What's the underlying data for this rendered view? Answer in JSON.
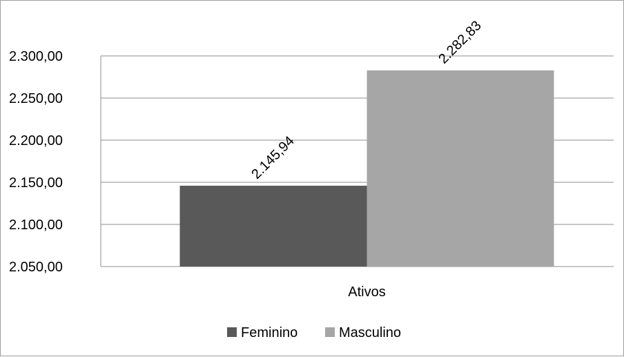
{
  "chart_data": {
    "type": "bar",
    "title": "",
    "xlabel": "",
    "ylabel": "",
    "categories": [
      "Ativos"
    ],
    "series": [
      {
        "name": "Feminino",
        "values": [
          2145.94
        ],
        "value_label": "2.145,94",
        "color": "#595959"
      },
      {
        "name": "Masculino",
        "values": [
          2282.83
        ],
        "value_label": "2.282,83",
        "color": "#a6a6a6"
      }
    ],
    "ylim": [
      2050,
      2300
    ],
    "yticks": [
      2050,
      2100,
      2150,
      2200,
      2250,
      2300
    ],
    "ytick_labels": [
      "2.050,00",
      "2.100,00",
      "2.150,00",
      "2.200,00",
      "2.250,00",
      "2.300,00"
    ],
    "grid": true,
    "legend_position": "bottom",
    "gridline_color": "#8c8c8c"
  }
}
